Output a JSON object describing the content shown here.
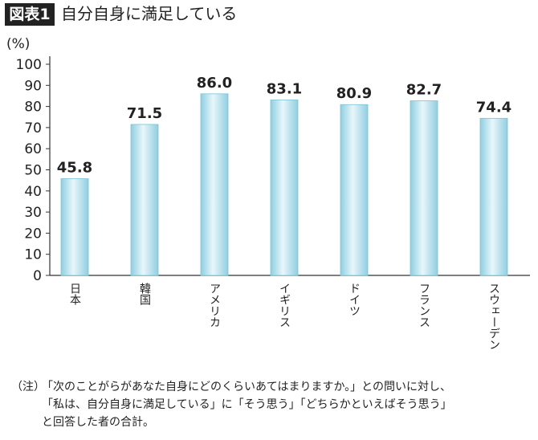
{
  "chart_data": {
    "type": "bar",
    "figure_label": "図表1",
    "title": "自分自身に満足している",
    "y_unit": "(%)",
    "categories": [
      "日本",
      "韓国",
      "アメリカ",
      "イギリス",
      "ドイツ",
      "フランス",
      "スウェーデン"
    ],
    "values": [
      45.8,
      71.5,
      86.0,
      83.1,
      80.9,
      82.7,
      74.4
    ],
    "value_labels": [
      "45.8",
      "71.5",
      "86.0",
      "83.1",
      "80.9",
      "82.7",
      "74.4"
    ],
    "color": "#b8e0ea",
    "ylim": [
      0,
      100
    ],
    "yticks": [
      0,
      10,
      20,
      30,
      40,
      50,
      60,
      70,
      80,
      90,
      100
    ],
    "grid": false,
    "note_mark": "（注）",
    "note": [
      "「次のことがらがあなた自身にどのくらいあてはまりますか。」との問いに対し、",
      "「私は、自分自身に満足している」に「そう思う」「どちらかといえばそう思う」",
      "と回答した者の合計。"
    ]
  }
}
